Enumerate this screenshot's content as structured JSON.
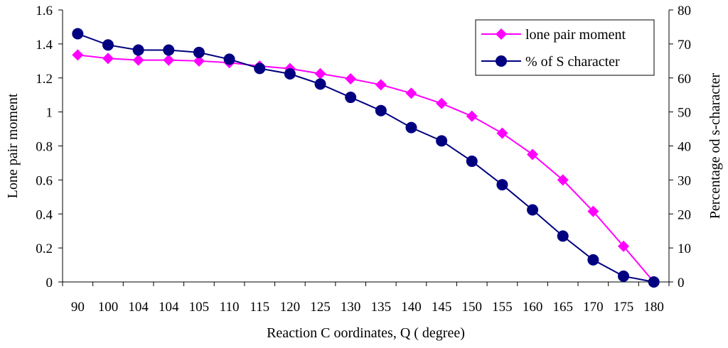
{
  "chart_data": {
    "type": "line",
    "categories": [
      "90",
      "100",
      "104",
      "104",
      "105",
      "110",
      "115",
      "120",
      "125",
      "130",
      "135",
      "140",
      "145",
      "150",
      "155",
      "160",
      "165",
      "170",
      "175",
      "180"
    ],
    "xlabel": "Reaction C oordinates, Q ( degree)",
    "ylabel": "Lone pair moment",
    "y2label": "Percentage od s-character",
    "ylim": [
      0,
      1.6
    ],
    "yticks": [
      "0",
      "0.2",
      "0.4",
      "0.6",
      "0.8",
      "1",
      "1.2",
      "1.4",
      "1.6"
    ],
    "y2lim": [
      0,
      80
    ],
    "y2ticks": [
      "0",
      "10",
      "20",
      "30",
      "40",
      "50",
      "60",
      "70",
      "80"
    ],
    "grid": false,
    "legend": "top-right",
    "series": [
      {
        "name": "lone pair moment",
        "axis": "left",
        "color": "#ff00ff",
        "marker": "diamond",
        "values": [
          1.335,
          1.315,
          1.305,
          1.305,
          1.3,
          1.29,
          1.27,
          1.255,
          1.225,
          1.195,
          1.16,
          1.11,
          1.05,
          0.975,
          0.875,
          0.75,
          0.6,
          0.415,
          0.21,
          0.0
        ]
      },
      {
        "name": "% of S character",
        "axis": "right",
        "color": "#000080",
        "marker": "circle",
        "values": [
          73.0,
          69.7,
          68.2,
          68.2,
          67.5,
          65.5,
          62.8,
          61.2,
          58.2,
          54.3,
          50.4,
          45.4,
          41.5,
          35.5,
          28.6,
          21.2,
          13.5,
          6.5,
          1.7,
          0.0
        ]
      }
    ]
  }
}
